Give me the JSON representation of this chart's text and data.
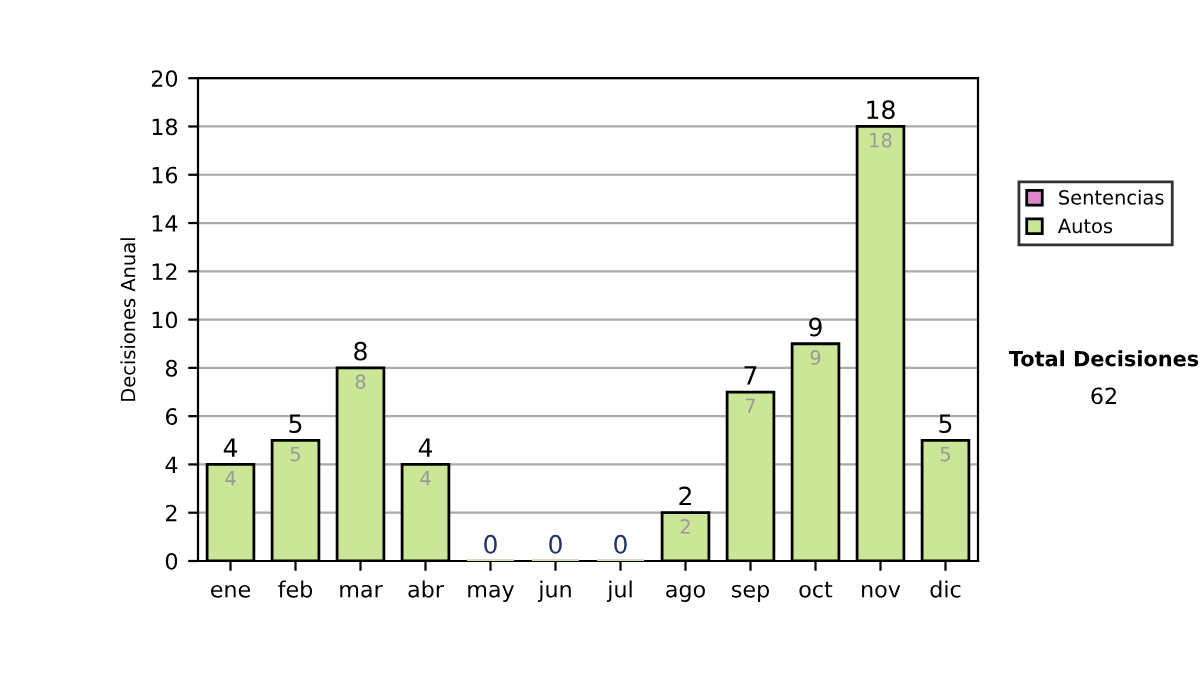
{
  "chart_data": {
    "type": "bar",
    "stacked": true,
    "ylabel": "Decisiones Anual",
    "categories": [
      "ene",
      "feb",
      "mar",
      "abr",
      "may",
      "jun",
      "jul",
      "ago",
      "sep",
      "oct",
      "nov",
      "dic"
    ],
    "series": [
      {
        "name": "Sentencias",
        "color": "#dd88cc",
        "values": [
          0,
          0,
          0,
          0,
          0,
          0,
          0,
          0,
          0,
          0,
          0,
          0
        ]
      },
      {
        "name": "Autos",
        "color": "#cce698",
        "values": [
          4,
          5,
          8,
          4,
          0,
          0,
          0,
          2,
          7,
          9,
          18,
          5
        ],
        "value_labels": [
          "4",
          "5",
          "8",
          "4",
          null,
          null,
          null,
          "2",
          "7",
          "9",
          "18",
          "5"
        ]
      }
    ],
    "totals": [
      "4",
      "5",
      "8",
      "4",
      "0",
      "0",
      "0",
      "2",
      "7",
      "9",
      "18",
      "5"
    ],
    "ylim": [
      0,
      20
    ],
    "yticks": [
      0,
      2,
      4,
      6,
      8,
      10,
      12,
      14,
      16,
      18,
      20
    ],
    "grid": "y",
    "legend": "right",
    "annotations": [
      "Total Decisiones",
      "62"
    ]
  }
}
